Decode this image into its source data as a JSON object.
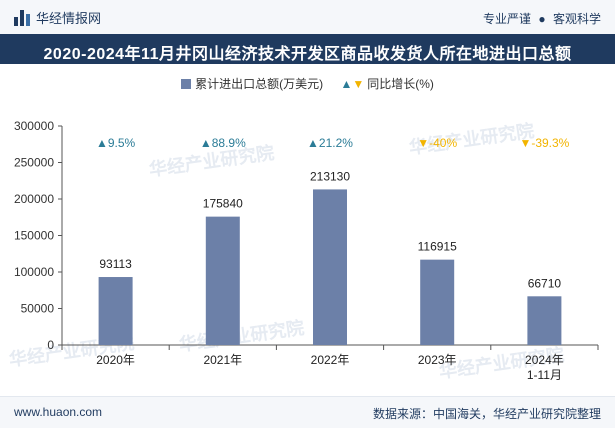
{
  "header": {
    "brand": "华经情报网",
    "slogan_left": "专业严谨",
    "slogan_sep": "●",
    "slogan_right": "客观科学"
  },
  "title": "2020-2024年11月井冈山经济技术开发区商品收发货人所在地进出口总额",
  "legend": {
    "series_label": "累计进出口总额(万美元)",
    "growth_up_icon": "▲",
    "growth_down_icon": "▼",
    "growth_label": "同比增长(%)"
  },
  "watermark": "华经产业研究院",
  "footer": {
    "website": "www.huaon.com",
    "source": "数据来源：中国海关，华经产业研究院整理"
  },
  "colors": {
    "bar": "#6c80a8",
    "up": "#2b7c97",
    "down": "#f2b400",
    "title_bg": "#1f3a5f"
  },
  "chart_data": {
    "type": "bar",
    "title": "2020-2024年11月井冈山经济技术开发区商品收发货人所在地进出口总额",
    "categories": [
      "2020年",
      "2021年",
      "2022年",
      "2023年",
      "2024年\n1-11月"
    ],
    "series": [
      {
        "name": "累计进出口总额(万美元)",
        "values": [
          93113,
          175840,
          213130,
          116915,
          66710
        ]
      }
    ],
    "growth": {
      "name": "同比增长(%)",
      "labels": [
        "9.5%",
        "88.9%",
        "21.2%",
        "-40%",
        "-39.3%"
      ],
      "values": [
        9.5,
        88.9,
        21.2,
        -40,
        -39.3
      ]
    },
    "ylim": [
      0,
      300000
    ],
    "yticks": [
      0,
      50000,
      100000,
      150000,
      200000,
      250000,
      300000
    ],
    "xlabel": "",
    "ylabel": "",
    "grid": false
  }
}
